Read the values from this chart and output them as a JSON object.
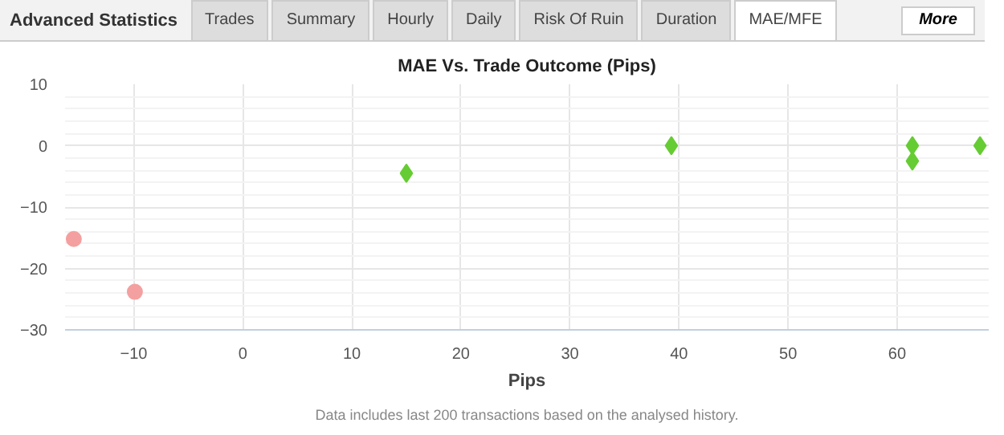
{
  "chart_data": {
    "type": "scatter",
    "title": "MAE Vs. Trade Outcome (Pips)",
    "xlabel": "Pips",
    "annotations": [
      "Advanced Statistics",
      "Trades",
      "Summary",
      "Hourly",
      "Daily",
      "Risk Of Ruin",
      "Duration",
      "MAE/MFE",
      "More",
      "Data includes last 200 transactions based on the analysed history."
    ],
    "xlim": [
      -16.3,
      68.4
    ],
    "ylim": [
      -30,
      10
    ],
    "xticks": [
      -10,
      0,
      10,
      20,
      30,
      40,
      50,
      60
    ],
    "yticks": [
      -30,
      -20,
      -10,
      0,
      10
    ],
    "grid": true,
    "series": [
      {
        "color": "#f4a0a0",
        "marker": "circle",
        "x": [
          -15.5,
          -9.9
        ],
        "values": [
          -15.2,
          -23.8
        ]
      },
      {
        "color": "#66cc33",
        "marker": "diamond",
        "x": [
          15,
          39.3,
          61.4,
          61.4,
          67.6
        ],
        "values": [
          -4.5,
          0,
          0,
          -2.5,
          0
        ]
      }
    ]
  }
}
